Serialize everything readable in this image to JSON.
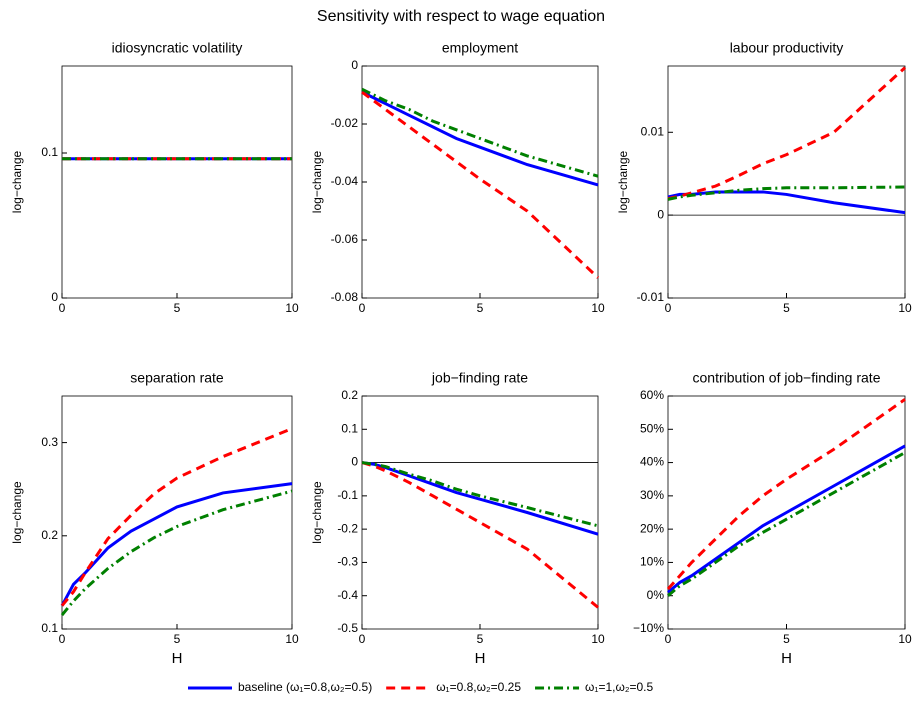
{
  "title": "Sensitivity with respect to wage equation",
  "legend": [
    {
      "name": "baseline (ω₁=0.8,ω₂=0.5)",
      "color": "#0000ff",
      "dash": "solid"
    },
    {
      "name": "ω₁=0.8,ω₂=0.25",
      "color": "#ff0000",
      "dash": "dashed"
    },
    {
      "name": "ω₁=1,ω₂=0.5",
      "color": "#008000",
      "dash": "dashdot"
    }
  ],
  "chart_data": [
    {
      "type": "line",
      "title": "idiosyncratic volatility",
      "ylabel": "log−change",
      "x": [
        0,
        0.5,
        1,
        2,
        3,
        4,
        5,
        7,
        10
      ],
      "xlim": [
        0,
        10
      ],
      "xticks": [
        0,
        5,
        10
      ],
      "ylim": [
        0,
        0.16
      ],
      "yticks": [
        0,
        0.1
      ],
      "series": [
        {
          "values": [
            0.096,
            0.096,
            0.096,
            0.096,
            0.096,
            0.096,
            0.096,
            0.096,
            0.096
          ]
        },
        {
          "values": [
            0.096,
            0.096,
            0.096,
            0.096,
            0.096,
            0.096,
            0.096,
            0.096,
            0.096
          ]
        },
        {
          "values": [
            0.096,
            0.096,
            0.096,
            0.096,
            0.096,
            0.096,
            0.096,
            0.096,
            0.096
          ]
        }
      ]
    },
    {
      "type": "line",
      "title": "employment",
      "ylabel": "log−change",
      "x": [
        0,
        0.5,
        1,
        2,
        3,
        4,
        5,
        7,
        10
      ],
      "xlim": [
        0,
        10
      ],
      "xticks": [
        0,
        5,
        10
      ],
      "ylim": [
        -0.08,
        0
      ],
      "yticks": [
        -0.08,
        -0.06,
        -0.04,
        -0.02,
        0
      ],
      "series": [
        {
          "values": [
            -0.009,
            -0.011,
            -0.013,
            -0.017,
            -0.021,
            -0.025,
            -0.028,
            -0.034,
            -0.041
          ]
        },
        {
          "values": [
            -0.009,
            -0.012,
            -0.015,
            -0.021,
            -0.027,
            -0.033,
            -0.039,
            -0.05,
            -0.073
          ]
        },
        {
          "values": [
            -0.008,
            -0.01,
            -0.012,
            -0.015,
            -0.019,
            -0.022,
            -0.025,
            -0.031,
            -0.038
          ]
        }
      ]
    },
    {
      "type": "line",
      "title": "labour productivity",
      "ylabel": "log−change",
      "zero_line": true,
      "x": [
        0,
        0.5,
        1,
        2,
        3,
        4,
        5,
        7,
        10
      ],
      "xlim": [
        0,
        10
      ],
      "xticks": [
        0,
        5,
        10
      ],
      "ylim": [
        -0.01,
        0.018
      ],
      "yticks": [
        -0.01,
        0,
        0.01
      ],
      "series": [
        {
          "values": [
            0.0022,
            0.0025,
            0.0025,
            0.0028,
            0.0028,
            0.0028,
            0.0025,
            0.0015,
            0.0003
          ]
        },
        {
          "values": [
            0.002,
            0.0023,
            0.0027,
            0.0035,
            0.0048,
            0.0062,
            0.0073,
            0.01,
            0.0178
          ]
        },
        {
          "values": [
            0.0019,
            0.0022,
            0.0024,
            0.0027,
            0.003,
            0.0032,
            0.0033,
            0.0033,
            0.0034
          ]
        }
      ]
    },
    {
      "type": "line",
      "title": "separation rate",
      "ylabel": "log−change",
      "xlabel": "H",
      "x": [
        0,
        0.5,
        1,
        2,
        3,
        4,
        5,
        7,
        10
      ],
      "xlim": [
        0,
        10
      ],
      "xticks": [
        0,
        5,
        10
      ],
      "ylim": [
        0.1,
        0.35
      ],
      "yticks": [
        0.1,
        0.2,
        0.3
      ],
      "series": [
        {
          "values": [
            0.125,
            0.148,
            0.16,
            0.187,
            0.205,
            0.218,
            0.231,
            0.246,
            0.256
          ]
        },
        {
          "values": [
            0.125,
            0.14,
            0.16,
            0.197,
            0.222,
            0.245,
            0.262,
            0.285,
            0.315
          ]
        },
        {
          "values": [
            0.115,
            0.13,
            0.143,
            0.165,
            0.183,
            0.198,
            0.21,
            0.228,
            0.248
          ]
        }
      ]
    },
    {
      "type": "line",
      "title": "job−finding rate",
      "ylabel": "log−change",
      "xlabel": "H",
      "zero_line": true,
      "x": [
        0,
        0.5,
        1,
        2,
        3,
        4,
        5,
        7,
        10
      ],
      "xlim": [
        0,
        10
      ],
      "xticks": [
        0,
        5,
        10
      ],
      "ylim": [
        -0.5,
        0.2
      ],
      "yticks": [
        -0.5,
        -0.4,
        -0.3,
        -0.2,
        -0.1,
        0,
        0.1,
        0.2
      ],
      "series": [
        {
          "values": [
            0,
            -0.005,
            -0.015,
            -0.04,
            -0.065,
            -0.09,
            -0.11,
            -0.15,
            -0.215
          ]
        },
        {
          "values": [
            0,
            -0.01,
            -0.025,
            -0.06,
            -0.1,
            -0.14,
            -0.18,
            -0.26,
            -0.435
          ]
        },
        {
          "values": [
            0,
            -0.005,
            -0.012,
            -0.035,
            -0.055,
            -0.08,
            -0.1,
            -0.135,
            -0.19
          ]
        }
      ]
    },
    {
      "type": "line",
      "title": "contribution of job−finding rate",
      "xlabel": "H",
      "x": [
        0,
        0.5,
        1,
        2,
        3,
        4,
        5,
        7,
        10
      ],
      "xlim": [
        0,
        10
      ],
      "xticks": [
        0,
        5,
        10
      ],
      "ylim": [
        -10,
        60
      ],
      "yticks": [
        {
          "value": -10,
          "label": "−10%"
        },
        {
          "value": 0,
          "label": "0%"
        },
        {
          "value": 10,
          "label": "10%"
        },
        {
          "value": 20,
          "label": "20%"
        },
        {
          "value": 30,
          "label": "30%"
        },
        {
          "value": 40,
          "label": "40%"
        },
        {
          "value": 50,
          "label": "50%"
        },
        {
          "value": 60,
          "label": "60%"
        }
      ],
      "series": [
        {
          "values": [
            1,
            4,
            6,
            11,
            16,
            21,
            25,
            33,
            45
          ]
        },
        {
          "values": [
            2,
            6,
            10,
            17,
            24,
            30,
            35,
            44,
            59
          ]
        },
        {
          "values": [
            0,
            3,
            5,
            10,
            15,
            19,
            23,
            31,
            43
          ]
        }
      ]
    }
  ]
}
